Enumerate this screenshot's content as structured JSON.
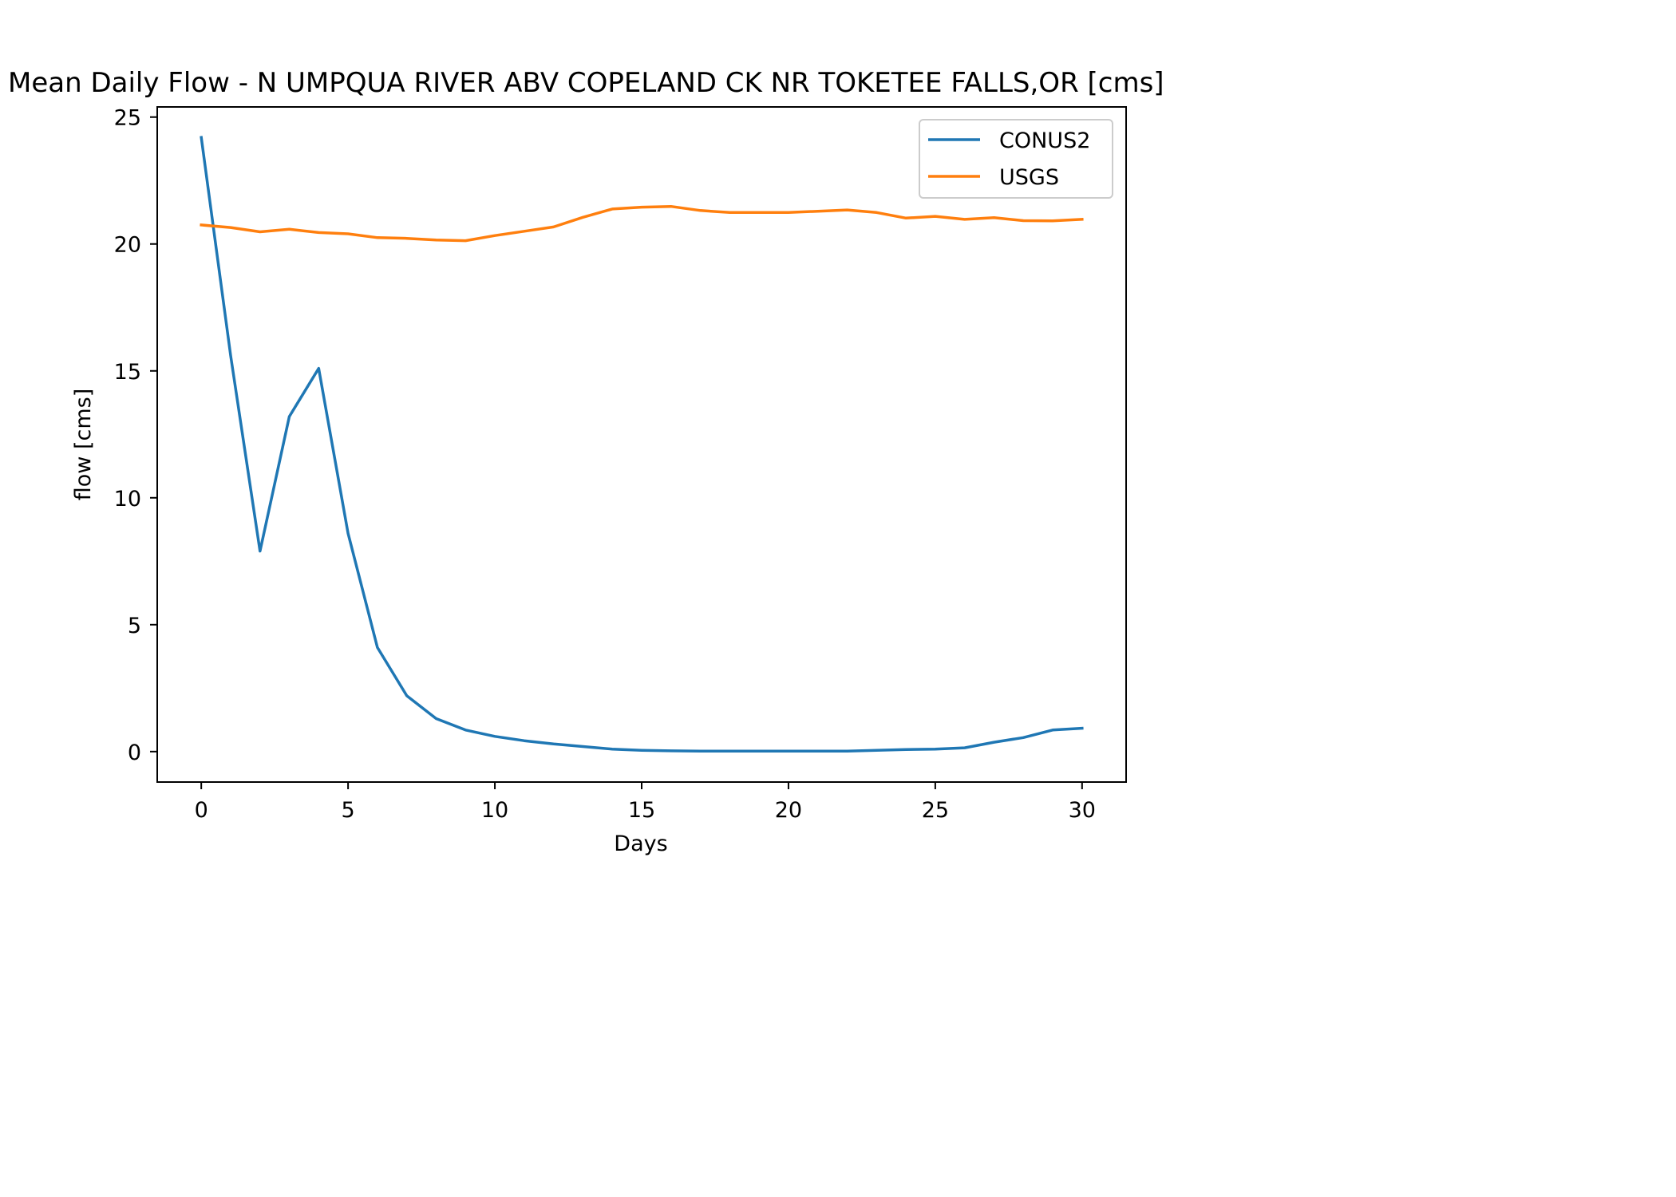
{
  "chart_data": {
    "type": "line",
    "title": "Mean Daily Flow - N UMPQUA RIVER ABV COPELAND CK NR TOKETEE FALLS,OR [cms]",
    "xlabel": "Days",
    "ylabel": "flow [cms]",
    "xlim": [
      -1.5,
      31.5
    ],
    "ylim": [
      -1.2,
      25.4
    ],
    "xticks": [
      0,
      5,
      10,
      15,
      20,
      25,
      30
    ],
    "yticks": [
      0,
      5,
      10,
      15,
      20,
      25
    ],
    "grid": false,
    "legend_position": "upper right",
    "x": [
      0,
      1,
      2,
      3,
      4,
      5,
      6,
      7,
      8,
      9,
      10,
      11,
      12,
      13,
      14,
      15,
      16,
      17,
      18,
      19,
      20,
      21,
      22,
      23,
      24,
      25,
      26,
      27,
      28,
      29,
      30
    ],
    "series": [
      {
        "name": "CONUS2",
        "color": "#1f77b4",
        "values": [
          24.2,
          15.6,
          7.9,
          13.2,
          15.1,
          8.6,
          4.1,
          2.2,
          1.3,
          0.85,
          0.6,
          0.43,
          0.3,
          0.2,
          0.1,
          0.05,
          0.03,
          0.02,
          0.02,
          0.02,
          0.02,
          0.02,
          0.02,
          0.05,
          0.08,
          0.1,
          0.15,
          0.37,
          0.55,
          0.85,
          0.92
        ]
      },
      {
        "name": "USGS",
        "color": "#ff7f0e",
        "values": [
          20.75,
          20.65,
          20.48,
          20.58,
          20.45,
          20.4,
          20.25,
          20.22,
          20.16,
          20.13,
          20.33,
          20.5,
          20.67,
          21.05,
          21.38,
          21.45,
          21.48,
          21.32,
          21.24,
          21.24,
          21.24,
          21.29,
          21.34,
          21.24,
          21.02,
          21.09,
          20.97,
          21.04,
          20.92,
          20.91,
          20.97
        ]
      }
    ]
  }
}
